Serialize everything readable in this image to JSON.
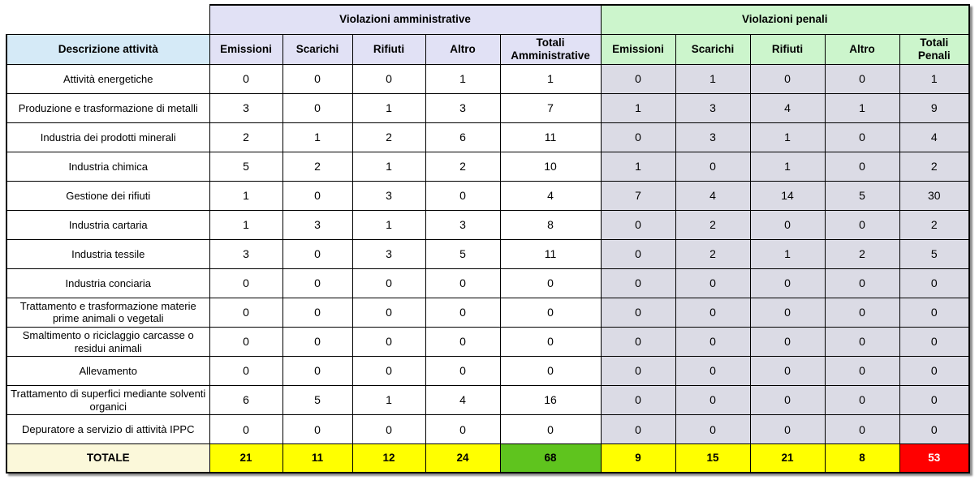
{
  "chart_data": {
    "type": "table",
    "section_headers": {
      "administrative": "Violazioni amministrative",
      "penal": "Violazioni penali"
    },
    "description_header": "Descrizione attività",
    "admin_columns": [
      "Emissioni",
      "Scarichi",
      "Rifiuti",
      "Altro",
      "Totali Amministrative"
    ],
    "penal_columns": [
      "Emissioni",
      "Scarichi",
      "Rifiuti",
      "Altro",
      "Totali Penali"
    ],
    "rows": [
      {
        "label": "Attività energetiche",
        "admin": [
          0,
          0,
          0,
          1,
          1
        ],
        "penal": [
          0,
          1,
          0,
          0,
          1
        ]
      },
      {
        "label": "Produzione e trasformazione di metalli",
        "admin": [
          3,
          0,
          1,
          3,
          7
        ],
        "penal": [
          1,
          3,
          4,
          1,
          9
        ]
      },
      {
        "label": "Industria dei prodotti minerali",
        "admin": [
          2,
          1,
          2,
          6,
          11
        ],
        "penal": [
          0,
          3,
          1,
          0,
          4
        ]
      },
      {
        "label": "Industria chimica",
        "admin": [
          5,
          2,
          1,
          2,
          10
        ],
        "penal": [
          1,
          0,
          1,
          0,
          2
        ]
      },
      {
        "label": "Gestione dei rifiuti",
        "admin": [
          1,
          0,
          3,
          0,
          4
        ],
        "penal": [
          7,
          4,
          14,
          5,
          30
        ]
      },
      {
        "label": "Industria cartaria",
        "admin": [
          1,
          3,
          1,
          3,
          8
        ],
        "penal": [
          0,
          2,
          0,
          0,
          2
        ]
      },
      {
        "label": "Industria tessile",
        "admin": [
          3,
          0,
          3,
          5,
          11
        ],
        "penal": [
          0,
          2,
          1,
          2,
          5
        ]
      },
      {
        "label": "Industria conciaria",
        "admin": [
          0,
          0,
          0,
          0,
          0
        ],
        "penal": [
          0,
          0,
          0,
          0,
          0
        ]
      },
      {
        "label": "Trattamento e trasformazione materie prime animali o vegetali",
        "admin": [
          0,
          0,
          0,
          0,
          0
        ],
        "penal": [
          0,
          0,
          0,
          0,
          0
        ]
      },
      {
        "label": "Smaltimento o riciclaggio carcasse o residui animali",
        "admin": [
          0,
          0,
          0,
          0,
          0
        ],
        "penal": [
          0,
          0,
          0,
          0,
          0
        ]
      },
      {
        "label": "Allevamento",
        "admin": [
          0,
          0,
          0,
          0,
          0
        ],
        "penal": [
          0,
          0,
          0,
          0,
          0
        ]
      },
      {
        "label": "Trattamento di superfici mediante solventi organici",
        "admin": [
          6,
          5,
          1,
          4,
          16
        ],
        "penal": [
          0,
          0,
          0,
          0,
          0
        ]
      },
      {
        "label": "Depuratore a servizio di attività IPPC",
        "admin": [
          0,
          0,
          0,
          0,
          0
        ],
        "penal": [
          0,
          0,
          0,
          0,
          0
        ]
      }
    ],
    "totals": {
      "label": "TOTALE",
      "admin": [
        21,
        11,
        12,
        24,
        68
      ],
      "penal": [
        9,
        15,
        21,
        8,
        53
      ]
    }
  },
  "colors": {
    "admin_header_bg": "#e1e1f5",
    "penal_header_bg": "#ccf5cc",
    "description_header_bg": "#d5eaf7",
    "penal_cell_bg": "#dbdbe5",
    "total_label_bg": "#fbf8da",
    "total_yellow": "#ffff00",
    "total_green": "#5fc41e",
    "total_red": "#ff0000"
  }
}
